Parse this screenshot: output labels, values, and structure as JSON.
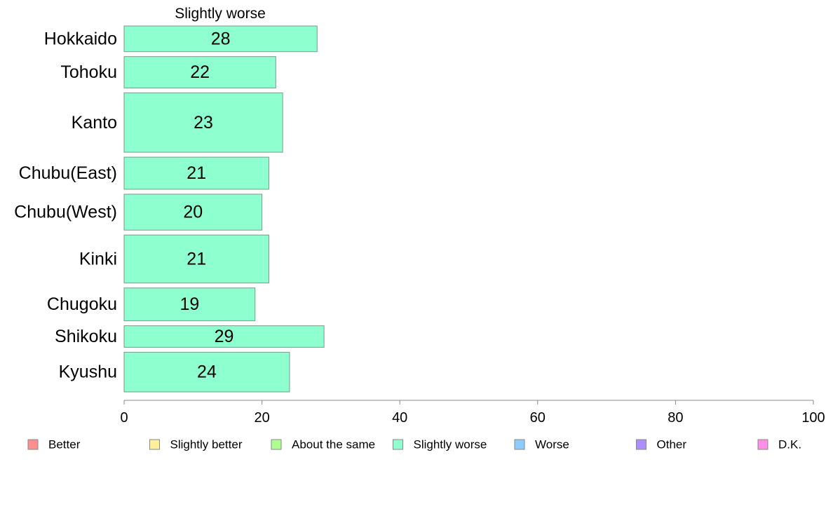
{
  "chart_data": {
    "type": "bar",
    "orientation": "horizontal",
    "title": "Slightly worse",
    "categories": [
      "Hokkaido",
      "Tohoku",
      "Kanto",
      "Chubu(East)",
      "Chubu(West)",
      "Kinki",
      "Chugoku",
      "Shikoku",
      "Kyushu"
    ],
    "values": [
      28,
      22,
      23,
      21,
      20,
      21,
      19,
      29,
      24
    ],
    "category_weights": [
      0.68,
      0.83,
      1.57,
      0.85,
      0.95,
      1.27,
      0.87,
      0.57,
      1.05
    ],
    "xlim": [
      0,
      100
    ],
    "xticks": [
      0,
      20,
      40,
      60,
      80,
      100
    ],
    "grid": false,
    "bar_color": "#8effcf",
    "bar_edge_color": "#7a9a8a",
    "legend_placement": "bottom",
    "legend": [
      {
        "label": "Better",
        "color": "#ff8e8e"
      },
      {
        "label": "Slightly better",
        "color": "#ffef9a"
      },
      {
        "label": "About the same",
        "color": "#acff8e"
      },
      {
        "label": "Slightly worse",
        "color": "#8effcf"
      },
      {
        "label": "Worse",
        "color": "#8ecbff"
      },
      {
        "label": "Other",
        "color": "#ac8eff"
      },
      {
        "label": "D.K.",
        "color": "#ff8ee6"
      }
    ]
  }
}
